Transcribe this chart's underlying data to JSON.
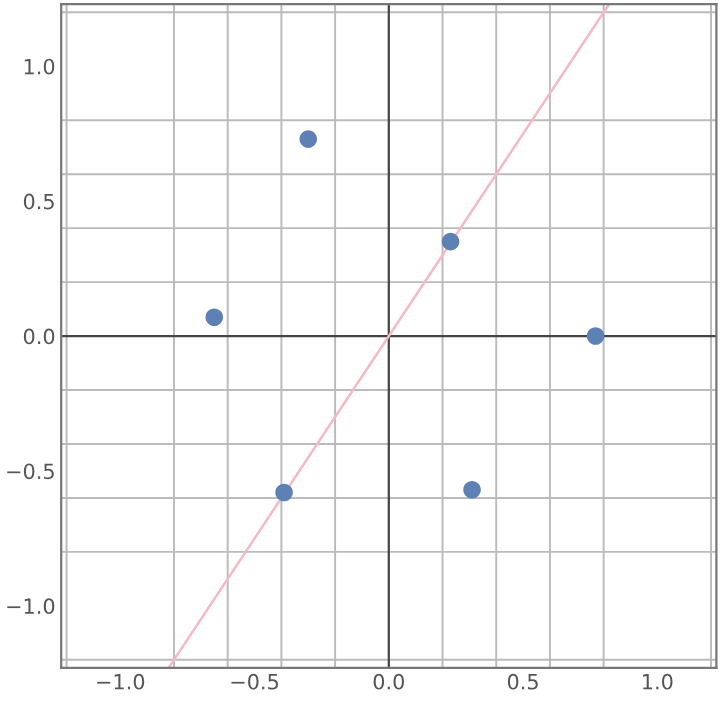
{
  "chart_data": {
    "type": "scatter",
    "series": [
      {
        "color": "#5e81b5",
        "x": [
          -0.65,
          -0.3,
          -0.39,
          0.23,
          0.31,
          0.77
        ],
        "values": [
          0.07,
          0.73,
          -0.58,
          0.35,
          -0.57,
          0.0
        ]
      },
      {
        "type": "line",
        "color": "#f6b8c4",
        "x": [
          -0.82,
          0.82
        ],
        "values": [
          -1.23,
          1.23
        ]
      }
    ],
    "xlim": [
      -1.22,
      1.22
    ],
    "ylim": [
      -1.23,
      1.23
    ],
    "xticks": [
      {
        "value": -1,
        "label": "−1.0"
      },
      {
        "value": -0.5,
        "label": "−0.5"
      },
      {
        "value": 0,
        "label": "0.0"
      },
      {
        "value": 0.5,
        "label": "0.5"
      },
      {
        "value": 1,
        "label": "1.0"
      }
    ],
    "yticks": [
      {
        "value": -1,
        "label": "−1.0"
      },
      {
        "value": -0.5,
        "label": "−0.5"
      },
      {
        "value": 0,
        "label": "0.0"
      },
      {
        "value": 0.5,
        "label": "0.5"
      },
      {
        "value": 1,
        "label": "1.0"
      }
    ],
    "grid": true
  }
}
